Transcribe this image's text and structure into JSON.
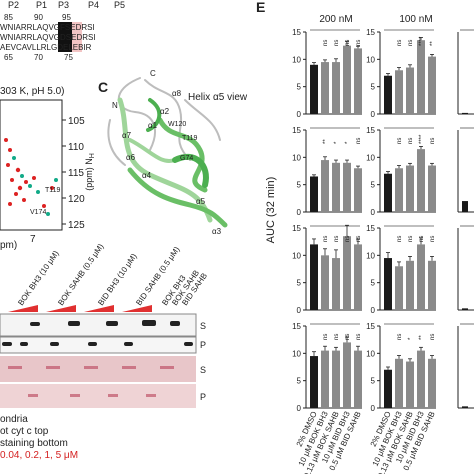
{
  "panel_labels": {
    "C": "C",
    "E": "E"
  },
  "seq": {
    "positions": [
      "P2",
      "P1",
      "P3",
      "P4",
      "P5"
    ],
    "top_numbers": [
      "85",
      "90",
      "95"
    ],
    "bottom_numbers": [
      "65",
      "70",
      "75"
    ],
    "lines": [
      "WNIARRLAQVGFSEDRSI",
      "WNIARRLAQVGDSEDRSI",
      "AEVCAVLLRLGDELEBIR"
    ]
  },
  "nmr": {
    "title": "303 K, pH 5.0)",
    "y_ticks": [
      "105",
      "110",
      "115",
      "120",
      "125"
    ],
    "ylabel": "N",
    "ylabel_sub": "H",
    "ylabel_unit": "(ppm)",
    "x_tick": "7",
    "xlabel_tail": "pm)",
    "peak_labels": [
      "T119",
      "V174"
    ]
  },
  "structure": {
    "title": "Helix α5 view",
    "labels": [
      "C",
      "N",
      "α8",
      "α1",
      "α2",
      "α6",
      "α4",
      "α5",
      "α3",
      "α7",
      "W120",
      "T119",
      "G74"
    ]
  },
  "blot": {
    "headers": [
      "BOK BH3\n(10 μM)",
      "BOK SAHB\n(0.5 μM)",
      "BID BH3\n(10 μM)",
      "BID SAHB\n(0.5 μM)",
      "BOK BH3",
      "BOK SAHB",
      "BID SAHB"
    ],
    "row_labels": [
      "S",
      "P",
      "S",
      "P"
    ],
    "caption": [
      "ondria",
      "ot cyt c top",
      "staining bottom"
    ],
    "caption_red": "0.04, 0.2, 1, 5 μM"
  },
  "chart_data": {
    "type": "bar",
    "ylabel": "AUC (32 min)",
    "columns": [
      "200 nM",
      "100 nM"
    ],
    "categories": [
      "2% DMSO",
      "10 μM BOK BH3",
      "0.13 μM BOK SAHB",
      "10 μM BID BH3",
      "0.5 μM BID SAHB"
    ],
    "yticks": [
      0,
      5,
      10,
      15
    ],
    "ylim": [
      0,
      15
    ],
    "panels": [
      {
        "row": 0,
        "col": 0,
        "values": [
          9.0,
          9.5,
          9.5,
          12.5,
          12.0
        ],
        "errors": [
          0.4,
          0.4,
          0.6,
          0.8,
          0.4
        ],
        "sig": [
          "ns",
          "ns",
          "ns",
          "ns"
        ]
      },
      {
        "row": 0,
        "col": 1,
        "values": [
          7.0,
          8.0,
          8.5,
          13.5,
          10.5
        ],
        "errors": [
          0.4,
          0.5,
          0.5,
          0.5,
          0.4
        ],
        "sig": [
          "ns",
          "ns",
          "****",
          "**"
        ]
      },
      {
        "row": 1,
        "col": 0,
        "values": [
          6.5,
          9.5,
          9.0,
          9.0,
          8.0
        ],
        "errors": [
          0.3,
          0.6,
          0.5,
          0.5,
          0.4
        ],
        "sig": [
          "**",
          "*",
          "*",
          "ns"
        ]
      },
      {
        "row": 1,
        "col": 1,
        "values": [
          7.0,
          8.0,
          8.5,
          11.5,
          8.5
        ],
        "errors": [
          0.4,
          0.5,
          0.4,
          0.5,
          0.4
        ],
        "sig": [
          "ns",
          "ns",
          "****",
          "ns"
        ]
      },
      {
        "row": 2,
        "col": 0,
        "values": [
          12.0,
          10.0,
          9.5,
          13.5,
          12.0
        ],
        "errors": [
          1.0,
          1.2,
          1.5,
          2.0,
          1.0
        ],
        "sig": [
          "ns",
          "ns",
          "ns",
          "ns"
        ]
      },
      {
        "row": 2,
        "col": 1,
        "values": [
          9.5,
          8.0,
          9.0,
          12.0,
          9.0
        ],
        "errors": [
          1.0,
          0.8,
          0.8,
          1.2,
          0.8
        ],
        "sig": [
          "ns",
          "ns",
          "ns",
          "ns"
        ]
      },
      {
        "row": 3,
        "col": 0,
        "values": [
          9.5,
          10.5,
          10.5,
          12.0,
          10.5
        ],
        "errors": [
          0.8,
          0.8,
          0.6,
          1.0,
          0.8
        ],
        "sig": [
          "ns",
          "ns",
          "ns",
          "ns"
        ]
      },
      {
        "row": 3,
        "col": 1,
        "values": [
          7.0,
          9.0,
          8.5,
          10.5,
          9.0
        ],
        "errors": [
          0.5,
          0.6,
          0.5,
          0.6,
          0.6
        ],
        "sig": [
          "ns",
          "*",
          "**",
          "ns"
        ]
      }
    ],
    "partial_right_values": [
      0.2,
      2.0,
      0.3,
      0.3
    ],
    "colors": {
      "control": "#1a1a1a",
      "treated": "#8a8a8a"
    }
  }
}
